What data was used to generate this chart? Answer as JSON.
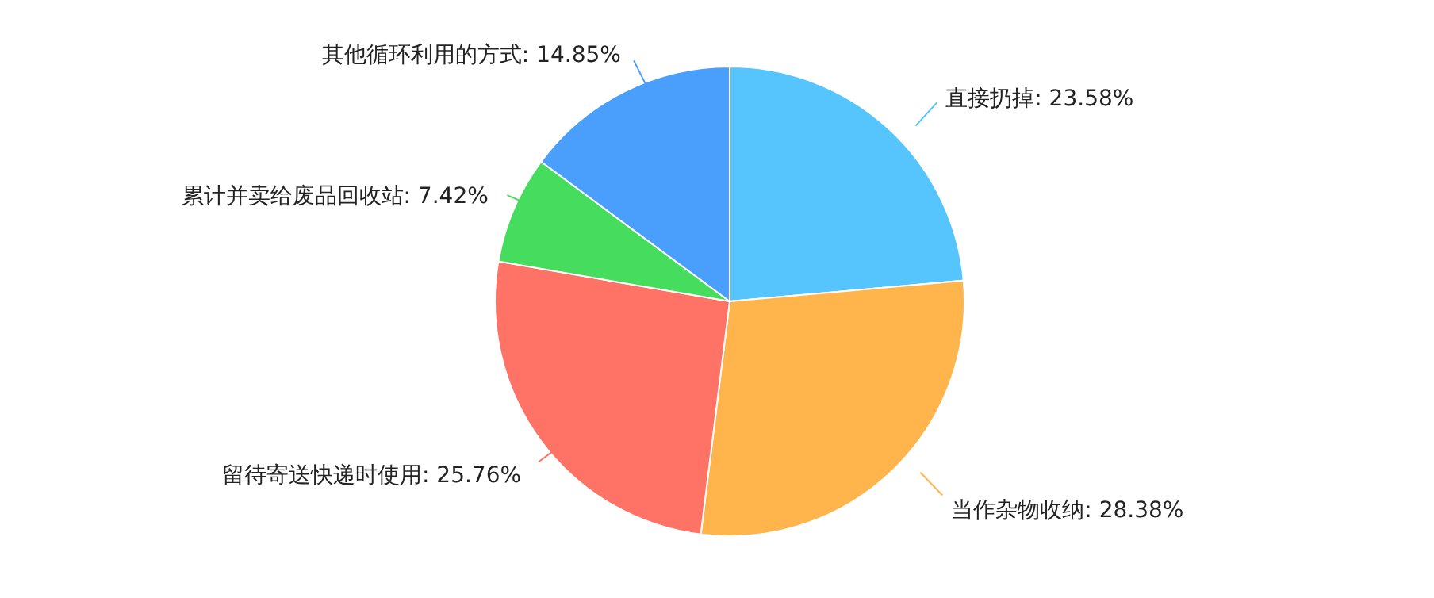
{
  "chart_data": {
    "type": "pie",
    "categories": [
      "直接扔掉",
      "当作杂物收纳",
      "留待寄送快递时使用",
      "累计并卖给废品回收站",
      "其他循环利用的方式"
    ],
    "values": [
      23.58,
      28.38,
      25.76,
      7.42,
      14.85
    ],
    "value_labels": [
      "23.58%",
      "28.38%",
      "25.76%",
      "7.42%",
      "14.85%"
    ],
    "colors": [
      "#56c5fd",
      "#ffb54c",
      "#ff7366",
      "#46dc5e",
      "#4a9ffd"
    ]
  }
}
